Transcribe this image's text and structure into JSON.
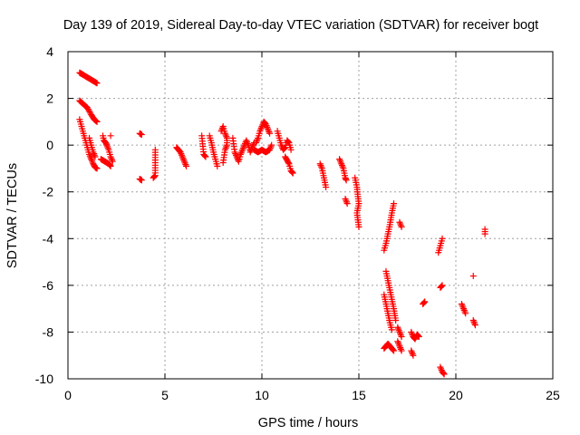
{
  "chart_data": {
    "type": "scatter",
    "title": "Day 139 of 2019, Sidereal Day-to-day VTEC variation (SDTVAR) for receiver bogt",
    "xlabel": "GPS time / hours",
    "ylabel": "SDTVAR / TECUs",
    "xlim": [
      0,
      25
    ],
    "ylim": [
      -10,
      4
    ],
    "xticks": [
      0,
      5,
      10,
      15,
      20,
      25
    ],
    "yticks": [
      -10,
      -8,
      -6,
      -4,
      -2,
      0,
      2,
      4
    ],
    "xtick_labels": [
      "0",
      "5",
      "10",
      "15",
      "20",
      "25"
    ],
    "ytick_labels": [
      "-10",
      "-8",
      "-6",
      "-4",
      "-2",
      "0",
      "2",
      "4"
    ],
    "grid": true,
    "marker": "+",
    "colors": {
      "series": "#ff0000",
      "axes": "#000000",
      "grid": "#a0a0a0",
      "background": "#ffffff"
    },
    "series": [
      {
        "name": "SDTVAR",
        "segments": [
          [
            [
              0.6,
              3.1
            ],
            [
              0.8,
              3.0
            ],
            [
              1.0,
              2.9
            ],
            [
              1.2,
              2.8
            ],
            [
              1.4,
              2.7
            ],
            [
              1.5,
              2.65
            ]
          ],
          [
            [
              0.6,
              1.9
            ],
            [
              0.8,
              1.75
            ],
            [
              1.0,
              1.6
            ],
            [
              1.2,
              1.3
            ],
            [
              1.35,
              1.1
            ],
            [
              1.5,
              1.0
            ]
          ],
          [
            [
              0.6,
              1.1
            ],
            [
              0.7,
              0.8
            ],
            [
              0.8,
              0.5
            ],
            [
              0.9,
              0.2
            ],
            [
              1.0,
              -0.1
            ],
            [
              1.1,
              -0.4
            ],
            [
              1.2,
              -0.6
            ],
            [
              1.3,
              -0.8
            ],
            [
              1.4,
              -0.95
            ],
            [
              1.5,
              -1.0
            ]
          ],
          [
            [
              1.1,
              0.3
            ],
            [
              1.2,
              0.0
            ],
            [
              1.3,
              -0.3
            ],
            [
              1.4,
              -0.5
            ]
          ],
          [
            [
              1.8,
              0.4
            ],
            [
              1.85,
              0.2
            ],
            [
              1.95,
              0.1
            ],
            [
              2.0,
              0.0
            ],
            [
              2.1,
              -0.2
            ],
            [
              2.2,
              -0.5
            ],
            [
              2.3,
              -0.7
            ]
          ],
          [
            [
              1.7,
              -0.6
            ],
            [
              1.9,
              -0.7
            ],
            [
              2.1,
              -0.8
            ],
            [
              2.2,
              -0.9
            ]
          ],
          [
            [
              2.2,
              0.4
            ]
          ],
          [
            [
              3.7,
              0.5
            ],
            [
              3.8,
              0.45
            ]
          ],
          [
            [
              3.7,
              -1.45
            ],
            [
              3.8,
              -1.5
            ]
          ],
          [
            [
              4.4,
              -1.4
            ],
            [
              4.5,
              -1.3
            ],
            [
              4.5,
              -0.2
            ]
          ],
          [
            [
              5.6,
              -0.1
            ],
            [
              5.8,
              -0.3
            ],
            [
              5.9,
              -0.5
            ],
            [
              6.0,
              -0.7
            ],
            [
              6.1,
              -0.9
            ]
          ],
          [
            [
              6.9,
              0.4
            ],
            [
              7.0,
              -0.4
            ],
            [
              7.1,
              -0.5
            ]
          ],
          [
            [
              7.3,
              0.4
            ],
            [
              7.4,
              0.1
            ],
            [
              7.45,
              -0.1
            ],
            [
              7.5,
              -0.3
            ],
            [
              7.6,
              -0.6
            ],
            [
              7.7,
              -0.9
            ]
          ],
          [
            [
              7.9,
              0.6
            ],
            [
              8.0,
              0.8
            ],
            [
              8.1,
              0.5
            ],
            [
              8.2,
              0.3
            ],
            [
              8.2,
              0.0
            ],
            [
              8.1,
              -0.2
            ],
            [
              8.0,
              -0.75
            ]
          ],
          [
            [
              8.5,
              0.3
            ],
            [
              8.6,
              -0.3
            ],
            [
              8.7,
              -0.5
            ],
            [
              8.8,
              -0.7
            ],
            [
              8.9,
              -0.4
            ],
            [
              9.0,
              -0.2
            ],
            [
              9.1,
              0.0
            ],
            [
              9.2,
              0.2
            ],
            [
              9.3,
              0.0
            ],
            [
              9.4,
              -0.3
            ],
            [
              9.5,
              -0.1
            ],
            [
              9.6,
              0.1
            ]
          ],
          [
            [
              9.7,
              0.1
            ],
            [
              9.8,
              0.3
            ],
            [
              9.9,
              0.6
            ],
            [
              10.0,
              0.8
            ],
            [
              10.1,
              1.0
            ],
            [
              10.2,
              0.9
            ],
            [
              10.3,
              0.7
            ],
            [
              10.4,
              0.5
            ]
          ],
          [
            [
              9.6,
              -0.2
            ],
            [
              9.8,
              -0.3
            ],
            [
              10.0,
              -0.2
            ],
            [
              10.2,
              -0.3
            ],
            [
              10.4,
              -0.2
            ],
            [
              10.5,
              0.0
            ]
          ],
          [
            [
              10.8,
              0.6
            ],
            [
              10.9,
              0.3
            ],
            [
              11.0,
              0.0
            ],
            [
              11.1,
              -0.2
            ],
            [
              11.2,
              -0.1
            ],
            [
              11.3,
              0.2
            ],
            [
              11.4,
              0.1
            ],
            [
              11.5,
              -0.2
            ]
          ],
          [
            [
              11.2,
              -0.5
            ],
            [
              11.4,
              -0.8
            ],
            [
              11.5,
              -1.1
            ],
            [
              11.6,
              -1.2
            ]
          ],
          [
            [
              13.0,
              -0.8
            ],
            [
              13.1,
              -1.0
            ],
            [
              13.15,
              -1.2
            ],
            [
              13.2,
              -1.4
            ],
            [
              13.25,
              -1.6
            ],
            [
              13.3,
              -1.8
            ]
          ],
          [
            [
              14.0,
              -0.6
            ],
            [
              14.1,
              -0.8
            ],
            [
              14.2,
              -1.0
            ],
            [
              14.25,
              -1.2
            ],
            [
              14.3,
              -1.4
            ],
            [
              14.35,
              -1.5
            ]
          ],
          [
            [
              14.3,
              -2.3
            ],
            [
              14.4,
              -2.5
            ]
          ],
          [
            [
              14.8,
              -1.4
            ],
            [
              14.9,
              -1.8
            ],
            [
              14.95,
              -2.2
            ],
            [
              15.0,
              -2.5
            ],
            [
              14.9,
              -2.9
            ],
            [
              14.95,
              -3.2
            ],
            [
              15.0,
              -3.5
            ]
          ],
          [
            [
              16.3,
              -4.5
            ],
            [
              16.4,
              -4.2
            ],
            [
              16.5,
              -3.8
            ],
            [
              16.6,
              -3.4
            ],
            [
              16.7,
              -2.9
            ],
            [
              16.8,
              -2.5
            ]
          ],
          [
            [
              16.4,
              -5.4
            ],
            [
              16.5,
              -5.8
            ],
            [
              16.6,
              -6.2
            ],
            [
              16.7,
              -6.6
            ],
            [
              16.8,
              -7.0
            ],
            [
              16.9,
              -7.5
            ]
          ],
          [
            [
              16.3,
              -6.4
            ],
            [
              16.4,
              -6.8
            ],
            [
              16.5,
              -7.2
            ],
            [
              16.6,
              -7.6
            ],
            [
              16.7,
              -7.9
            ]
          ],
          [
            [
              16.3,
              -8.7
            ],
            [
              16.4,
              -8.6
            ],
            [
              16.5,
              -8.5
            ],
            [
              16.6,
              -8.6
            ],
            [
              16.7,
              -8.7
            ],
            [
              16.8,
              -8.8
            ]
          ],
          [
            [
              17.0,
              -7.8
            ],
            [
              17.1,
              -8.0
            ],
            [
              17.2,
              -8.2
            ]
          ],
          [
            [
              17.0,
              -8.4
            ],
            [
              17.1,
              -8.6
            ],
            [
              17.2,
              -8.8
            ]
          ],
          [
            [
              17.1,
              -3.3
            ],
            [
              17.2,
              -3.5
            ]
          ],
          [
            [
              17.7,
              -8.0
            ],
            [
              17.8,
              -8.2
            ],
            [
              17.9,
              -8.3
            ],
            [
              18.0,
              -8.1
            ],
            [
              18.1,
              -8.2
            ]
          ],
          [
            [
              17.7,
              -8.8
            ],
            [
              17.8,
              -9.0
            ]
          ],
          [
            [
              18.3,
              -6.8
            ],
            [
              18.4,
              -6.7
            ]
          ],
          [
            [
              19.1,
              -4.6
            ],
            [
              19.2,
              -4.3
            ],
            [
              19.3,
              -4.0
            ]
          ],
          [
            [
              19.2,
              -6.1
            ],
            [
              19.3,
              -6.0
            ]
          ],
          [
            [
              19.2,
              -9.5
            ],
            [
              19.3,
              -9.7
            ],
            [
              19.4,
              -9.8
            ]
          ],
          [
            [
              20.3,
              -6.8
            ],
            [
              20.4,
              -7.0
            ],
            [
              20.5,
              -7.2
            ]
          ],
          [
            [
              20.9,
              -5.6
            ]
          ],
          [
            [
              20.9,
              -7.5
            ],
            [
              21.0,
              -7.7
            ]
          ],
          [
            [
              21.5,
              -3.6
            ],
            [
              21.5,
              -3.8
            ]
          ]
        ]
      }
    ]
  }
}
